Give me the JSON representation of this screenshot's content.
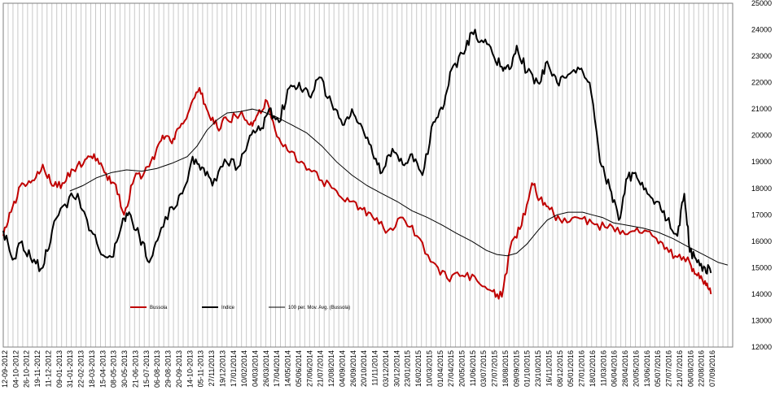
{
  "chart_data": {
    "type": "line",
    "title": "",
    "xlabel": "",
    "ylabel": "",
    "ylim": [
      12000,
      25000
    ],
    "y_ticks": [
      12000,
      13000,
      14000,
      15000,
      16000,
      17000,
      18000,
      19000,
      20000,
      21000,
      22000,
      23000,
      24000,
      25000
    ],
    "y_axis_position": "right",
    "x_range": [
      "2012-09-12",
      "2016-09-30"
    ],
    "x_tick_labels": [
      "12-09-2012",
      "04-10-2012",
      "26-10-2012",
      "19-11-2012",
      "11-12-2012",
      "09-01-2013",
      "31-01-2013",
      "22-02-2013",
      "18-03-2013",
      "15-04-2013",
      "08-05-2013",
      "30-05-2013",
      "21-06-2013",
      "15-07-2013",
      "06-08-2013",
      "29-08-2013",
      "20-09-2013",
      "14-10-2013",
      "05-11-2013",
      "27/11/2013",
      "19/12/2013",
      "17/01/2014",
      "10/02/2014",
      "04/03/2014",
      "26/03/2014",
      "17/04/2014",
      "14/05/2014",
      "05/06/2014",
      "27/06/2014",
      "21/07/2014",
      "12/08/2014",
      "04/09/2014",
      "26/09/2014",
      "20/10/2014",
      "11/11/2014",
      "03/12/2014",
      "30/12/2014",
      "23/01/2015",
      "16/02/2015",
      "10/03/2015",
      "01/04/2015",
      "27/04/2015",
      "20/05/2015",
      "11/06/2015",
      "03/07/2015",
      "27/07/2015",
      "18/08/2015",
      "09/09/2015",
      "01/10/2015",
      "23/10/2015",
      "16/11/2015",
      "08/12/2015",
      "05/01/2016",
      "27/01/2016",
      "18/02/2016",
      "11/03/2016",
      "06/04/2016",
      "28/04/2016",
      "20/05/2016",
      "13/06/2016",
      "05/07/2016",
      "27/07/2016",
      "21/07/2016",
      "06/08/2016",
      "22/08/2016",
      "07/09/2016"
    ],
    "grid": {
      "vertical": true,
      "horizontal": false
    },
    "legend": {
      "position": "bottom-left",
      "orientation": "horizontal"
    },
    "series": [
      {
        "name": "Bussola",
        "color": "#c00000",
        "x": [
          "2012-09-12",
          "2012-10-01",
          "2012-10-20",
          "2012-11-10",
          "2012-12-01",
          "2012-12-20",
          "2013-01-10",
          "2013-02-01",
          "2013-02-25",
          "2013-03-15",
          "2013-04-05",
          "2013-04-25",
          "2013-05-15",
          "2013-06-05",
          "2013-06-25",
          "2013-07-15",
          "2013-08-01",
          "2013-08-20",
          "2013-09-05",
          "2013-09-25",
          "2013-10-15",
          "2013-11-01",
          "2013-11-20",
          "2013-12-10",
          "2014-01-05",
          "2014-01-25",
          "2014-02-10",
          "2014-03-01",
          "2014-03-25",
          "2014-04-20",
          "2014-05-20",
          "2014-06-20",
          "2014-07-20",
          "2014-08-15",
          "2014-09-10",
          "2014-10-05",
          "2014-11-01",
          "2014-12-01",
          "2014-12-30",
          "2015-02-01",
          "2015-03-01",
          "2015-04-01",
          "2015-05-01",
          "2015-06-01",
          "2015-06-20",
          "2015-07-10",
          "2015-07-30",
          "2015-08-20",
          "2015-09-05",
          "2015-09-25",
          "2015-10-20",
          "2015-11-20",
          "2015-12-20",
          "2016-01-20",
          "2016-02-20",
          "2016-03-20",
          "2016-04-20",
          "2016-05-15",
          "2016-06-10",
          "2016-07-05",
          "2016-07-20",
          "2016-08-05",
          "2016-08-17"
        ],
        "values": [
          16200,
          17300,
          18200,
          18300,
          18900,
          18100,
          18200,
          18700,
          19100,
          19300,
          18600,
          18200,
          17000,
          18400,
          18600,
          19100,
          20000,
          19700,
          20300,
          21000,
          21800,
          20900,
          20300,
          20600,
          20800,
          20400,
          20800,
          21300,
          19900,
          19400,
          18700,
          18300,
          17900,
          17500,
          17200,
          16800,
          16400,
          16900,
          16200,
          15200,
          14600,
          14700,
          14500,
          14100,
          13900,
          16000,
          16600,
          18200,
          17600,
          17200,
          16700,
          16900,
          16700,
          16500,
          16400,
          16500,
          16200,
          15700,
          15400,
          15200,
          14700,
          14500,
          14000
        ]
      },
      {
        "name": "Indice",
        "color": "#000000",
        "x": [
          "2012-09-12",
          "2012-10-01",
          "2012-10-20",
          "2012-11-10",
          "2012-12-01",
          "2012-12-20",
          "2013-01-15",
          "2013-02-10",
          "2013-03-01",
          "2013-03-25",
          "2013-04-20",
          "2013-05-10",
          "2013-05-25",
          "2013-06-15",
          "2013-07-05",
          "2013-07-25",
          "2013-08-20",
          "2013-09-10",
          "2013-10-01",
          "2013-10-20",
          "2013-11-10",
          "2013-12-05",
          "2014-01-01",
          "2014-01-25",
          "2014-02-15",
          "2014-03-05",
          "2014-03-25",
          "2014-04-15",
          "2014-05-05",
          "2014-05-25",
          "2014-06-15",
          "2014-07-10",
          "2014-08-01",
          "2014-08-20",
          "2014-09-10",
          "2014-10-01",
          "2014-10-20",
          "2014-11-10",
          "2014-12-01",
          "2014-12-20",
          "2015-01-10",
          "2015-02-01",
          "2015-02-20",
          "2015-03-10",
          "2015-04-01",
          "2015-04-20",
          "2015-05-10",
          "2015-06-01",
          "2015-06-20",
          "2015-07-05",
          "2015-07-20",
          "2015-08-10",
          "2015-09-01",
          "2015-09-20",
          "2015-10-10",
          "2015-11-01",
          "2015-11-25",
          "2015-12-15",
          "2016-01-05",
          "2016-01-25",
          "2016-02-12",
          "2016-03-01",
          "2016-03-20",
          "2016-04-10",
          "2016-05-01",
          "2016-05-20",
          "2016-06-10",
          "2016-06-24",
          "2016-07-05",
          "2016-07-20",
          "2016-08-05",
          "2016-08-17"
        ],
        "values": [
          16400,
          15300,
          16000,
          15200,
          15000,
          16400,
          17400,
          17800,
          16800,
          15700,
          15400,
          16600,
          17100,
          16200,
          15200,
          16200,
          17300,
          17800,
          19200,
          18800,
          18100,
          19100,
          18800,
          20000,
          20200,
          21000,
          20500,
          21800,
          22000,
          21500,
          22200,
          21200,
          20400,
          21000,
          20300,
          19300,
          18600,
          19500,
          18900,
          19300,
          18500,
          20500,
          21000,
          22500,
          23100,
          23900,
          23600,
          23100,
          22600,
          22500,
          23400,
          22400,
          22000,
          22800,
          22000,
          22300,
          22500,
          22000,
          19000,
          18000,
          16800,
          18400,
          18400,
          17800,
          17500,
          16800,
          16200,
          17800,
          15600,
          15200,
          15000,
          14800
        ]
      },
      {
        "name": "100 per. Mov. Avg. (Bussola)",
        "color": "#000000",
        "x": [
          "2013-01-25",
          "2013-02-20",
          "2013-03-20",
          "2013-04-20",
          "2013-05-20",
          "2013-06-20",
          "2013-07-20",
          "2013-08-20",
          "2013-09-20",
          "2013-10-10",
          "2013-10-30",
          "2013-11-20",
          "2013-12-10",
          "2014-01-05",
          "2014-01-30",
          "2014-02-20",
          "2014-03-20",
          "2014-04-20",
          "2014-05-20",
          "2014-06-20",
          "2014-07-20",
          "2014-08-20",
          "2014-09-20",
          "2014-10-20",
          "2014-11-20",
          "2014-12-20",
          "2015-01-20",
          "2015-02-20",
          "2015-03-20",
          "2015-04-20",
          "2015-05-20",
          "2015-06-10",
          "2015-07-01",
          "2015-07-20",
          "2015-08-10",
          "2015-09-01",
          "2015-09-20",
          "2015-10-10",
          "2015-11-01",
          "2015-12-01",
          "2015-12-20",
          "2016-01-10",
          "2016-02-01",
          "2016-03-01",
          "2016-04-01",
          "2016-05-01",
          "2016-06-01",
          "2016-07-01",
          "2016-08-01",
          "2016-09-01",
          "2016-09-20"
        ],
        "values": [
          17900,
          18100,
          18400,
          18600,
          18700,
          18650,
          18750,
          18950,
          19200,
          19600,
          20200,
          20600,
          20850,
          20900,
          21000,
          20900,
          20700,
          20400,
          20100,
          19600,
          19000,
          18500,
          18100,
          17800,
          17500,
          17150,
          16900,
          16600,
          16300,
          16000,
          15650,
          15500,
          15450,
          15550,
          15900,
          16400,
          16800,
          17000,
          17100,
          17100,
          17000,
          16900,
          16700,
          16600,
          16500,
          16350,
          16100,
          15800,
          15500,
          15200,
          15100
        ]
      }
    ]
  }
}
